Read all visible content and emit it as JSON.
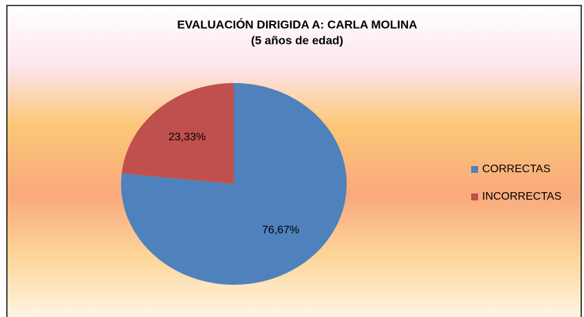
{
  "chart_data": {
    "type": "pie",
    "title": "EVALUACIÓN DIRIGIDA A: CARLA MOLINA",
    "subtitle": "(5 años de edad)",
    "categories": [
      "CORRECTAS",
      "INCORRECTAS"
    ],
    "values": [
      76.67,
      23.33
    ],
    "value_labels": [
      "76,67%",
      "23,33%"
    ],
    "colors": [
      "#4f81bd",
      "#c0504d"
    ],
    "legend": "right"
  }
}
